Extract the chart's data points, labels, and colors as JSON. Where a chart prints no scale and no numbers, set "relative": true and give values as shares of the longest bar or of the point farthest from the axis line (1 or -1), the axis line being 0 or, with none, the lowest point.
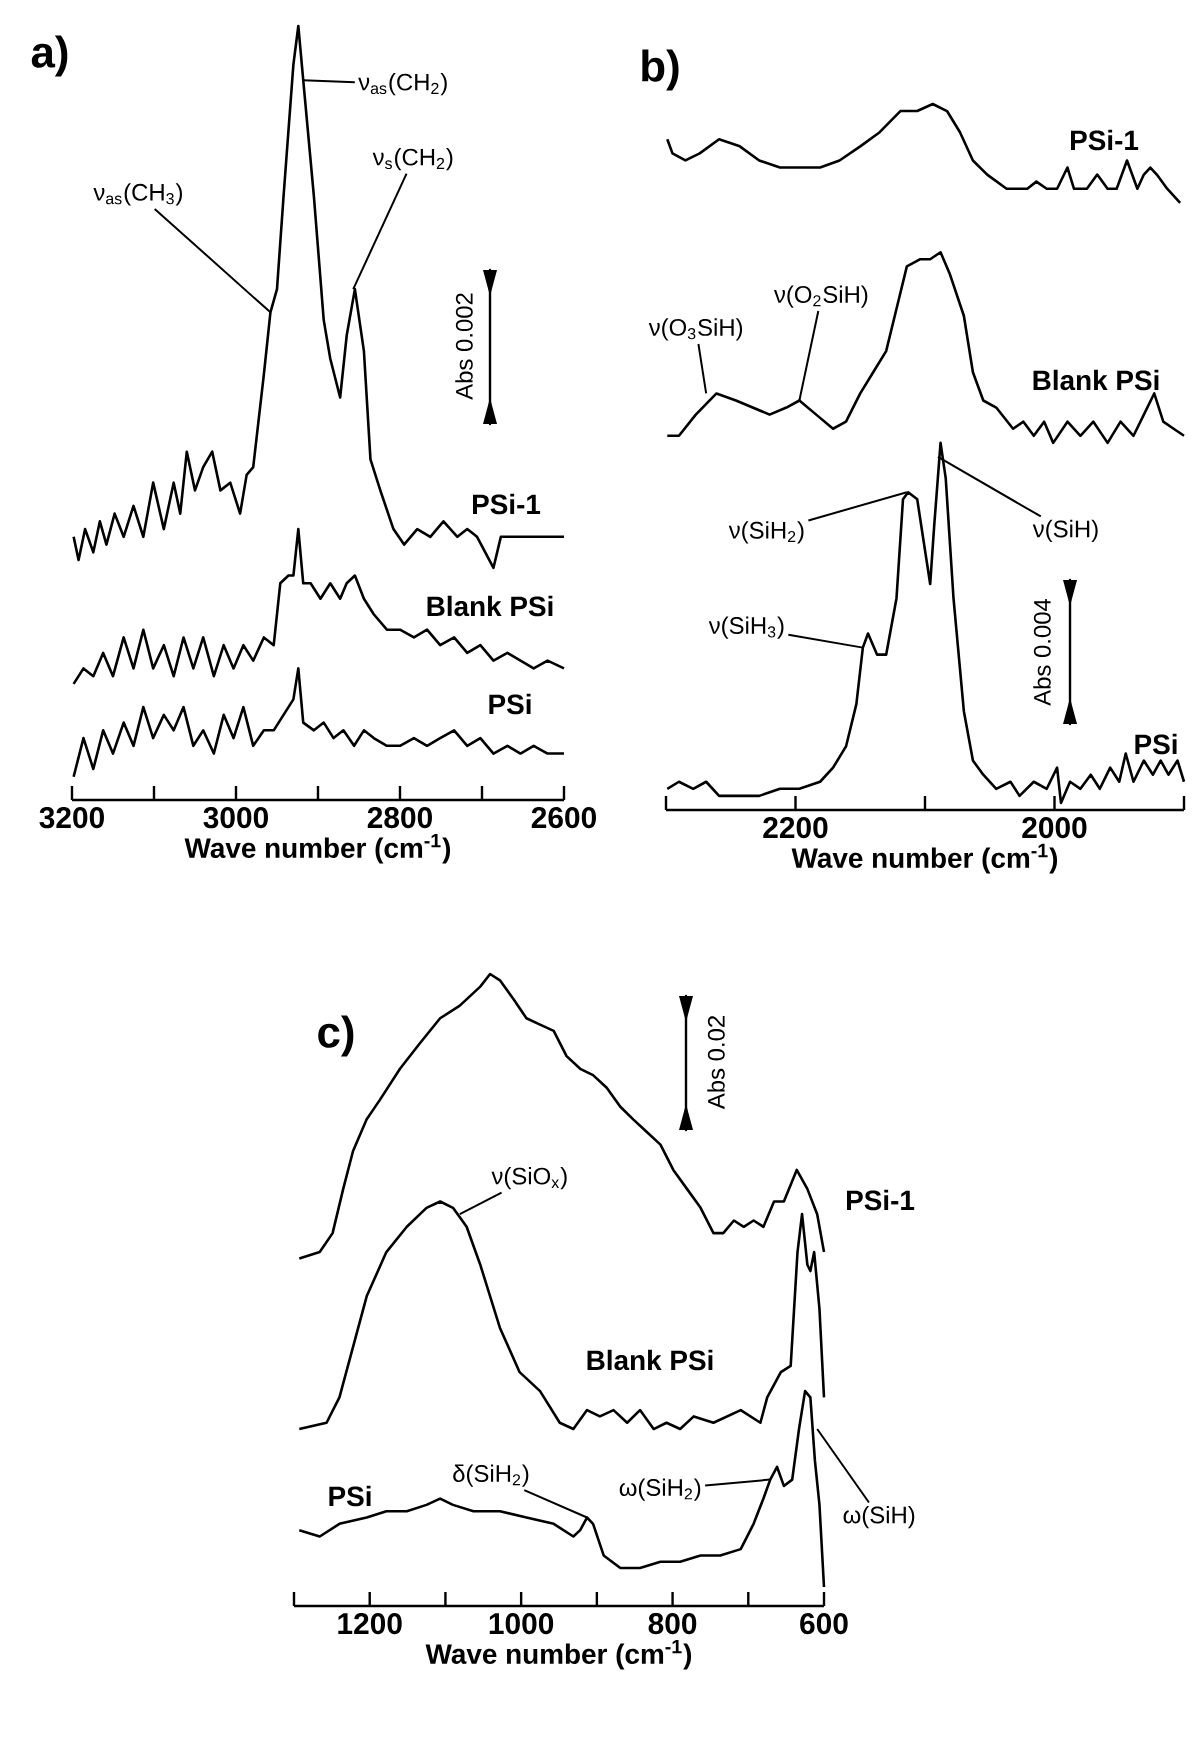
{
  "chart_data": [
    {
      "type": "line",
      "title": "a)",
      "xlabel": "Wave number (cm$^{-1}$)",
      "relative": true,
      "xlim": [
        3200,
        2600
      ],
      "xticks": [
        3200,
        {
          "value": 3100,
          "label": null
        },
        3000,
        {
          "value": 2900,
          "label": null
        },
        2800,
        {
          "value": 2700,
          "label": null
        },
        2600
      ],
      "series": [
        {
          "name": "PSi-1",
          "color": "#000000",
          "x": [
            3198,
            3192,
            3184,
            3174,
            3166,
            3158,
            3148,
            3137,
            3125,
            3113,
            3101,
            3088,
            3076,
            3068,
            3060,
            3050,
            3040,
            3029,
            3019,
            3007,
            2995,
            2987,
            2979,
            2966,
            2958,
            2950,
            2942,
            2930,
            2924,
            2918,
            2905,
            2893,
            2885,
            2873,
            2865,
            2855,
            2844,
            2836,
            2824,
            2808,
            2795,
            2779,
            2763,
            2747,
            2730,
            2718,
            2706,
            2686,
            2677,
            2661,
            2645,
            2629,
            2616,
            2600
          ],
          "values": [
            0.34,
            0.31,
            0.35,
            0.32,
            0.36,
            0.33,
            0.37,
            0.34,
            0.38,
            0.34,
            0.41,
            0.35,
            0.41,
            0.37,
            0.45,
            0.4,
            0.43,
            0.45,
            0.4,
            0.41,
            0.37,
            0.42,
            0.43,
            0.55,
            0.63,
            0.66,
            0.78,
            0.95,
            1.0,
            0.93,
            0.78,
            0.62,
            0.57,
            0.52,
            0.6,
            0.66,
            0.58,
            0.44,
            0.4,
            0.35,
            0.33,
            0.35,
            0.34,
            0.36,
            0.34,
            0.35,
            0.34,
            0.3,
            0.34,
            0.34,
            0.34,
            0.34,
            0.34,
            0.34
          ]
        },
        {
          "name": "Blank PSi",
          "color": "#000000",
          "x": [
            3198,
            3186,
            3174,
            3162,
            3150,
            3137,
            3125,
            3113,
            3101,
            3088,
            3076,
            3064,
            3052,
            3040,
            3027,
            3015,
            3003,
            2991,
            2979,
            2966,
            2954,
            2946,
            2936,
            2930,
            2924,
            2918,
            2909,
            2897,
            2885,
            2873,
            2865,
            2855,
            2844,
            2832,
            2816,
            2800,
            2783,
            2767,
            2751,
            2734,
            2718,
            2702,
            2686,
            2669,
            2653,
            2637,
            2620,
            2600
          ],
          "values": [
            0.15,
            0.17,
            0.16,
            0.19,
            0.16,
            0.21,
            0.17,
            0.22,
            0.17,
            0.2,
            0.16,
            0.21,
            0.17,
            0.21,
            0.16,
            0.2,
            0.17,
            0.2,
            0.18,
            0.21,
            0.2,
            0.28,
            0.29,
            0.29,
            0.35,
            0.28,
            0.28,
            0.26,
            0.28,
            0.26,
            0.28,
            0.29,
            0.26,
            0.24,
            0.22,
            0.22,
            0.21,
            0.22,
            0.2,
            0.21,
            0.19,
            0.2,
            0.18,
            0.19,
            0.18,
            0.17,
            0.18,
            0.17
          ]
        },
        {
          "name": "PSi",
          "color": "#000000",
          "x": [
            3198,
            3186,
            3174,
            3162,
            3150,
            3137,
            3125,
            3113,
            3101,
            3088,
            3076,
            3064,
            3052,
            3040,
            3027,
            3015,
            3003,
            2991,
            2979,
            2966,
            2954,
            2942,
            2930,
            2924,
            2918,
            2905,
            2893,
            2881,
            2869,
            2856,
            2844,
            2832,
            2816,
            2800,
            2783,
            2767,
            2751,
            2734,
            2718,
            2702,
            2686,
            2669,
            2653,
            2637,
            2620,
            2600
          ],
          "values": [
            0.03,
            0.08,
            0.04,
            0.09,
            0.06,
            0.1,
            0.07,
            0.12,
            0.08,
            0.11,
            0.09,
            0.12,
            0.07,
            0.09,
            0.06,
            0.11,
            0.08,
            0.12,
            0.07,
            0.09,
            0.09,
            0.11,
            0.13,
            0.17,
            0.1,
            0.09,
            0.1,
            0.08,
            0.09,
            0.07,
            0.09,
            0.08,
            0.07,
            0.07,
            0.08,
            0.07,
            0.08,
            0.09,
            0.07,
            0.08,
            0.06,
            0.07,
            0.06,
            0.07,
            0.06,
            0.06
          ]
        }
      ],
      "annotations": [
        {
          "text": "ν$_{as}$(CH$_{3}$)",
          "x": 2958,
          "y": 0.63
        },
        {
          "text": "ν$_{as}$(CH$_{2}$)",
          "x": 2918,
          "y": 0.93
        },
        {
          "text": "ν$_{s}$(CH$_{2}$)",
          "x": 2857,
          "y": 0.66
        },
        "Abs 0.002"
      ]
    },
    {
      "type": "line",
      "title": "b)",
      "xlabel": "Wave number (cm$^{-1}$)",
      "relative": true,
      "xlim": [
        2300,
        1900
      ],
      "xticks": [
        {
          "value": 2300,
          "label": null
        },
        2200,
        {
          "value": 2100,
          "label": null
        },
        2000,
        {
          "value": 1900,
          "label": null
        }
      ],
      "series": [
        {
          "name": "PSi-1",
          "color": "#000000",
          "x": [
            2299,
            2295,
            2285,
            2274,
            2259,
            2243,
            2228,
            2212,
            2197,
            2181,
            2166,
            2150,
            2135,
            2119,
            2106,
            2094,
            2083,
            2073,
            2063,
            2052,
            2037,
            2021,
            2014,
            2006,
            1998,
            1990,
            1985,
            1975,
            1967,
            1959,
            1952,
            1944,
            1936,
            1931,
            1926,
            1921,
            1913,
            1903
          ],
          "values": [
            0.95,
            0.93,
            0.92,
            0.93,
            0.95,
            0.94,
            0.92,
            0.91,
            0.91,
            0.91,
            0.92,
            0.94,
            0.96,
            0.99,
            0.99,
            1.0,
            0.99,
            0.96,
            0.92,
            0.9,
            0.88,
            0.88,
            0.89,
            0.88,
            0.88,
            0.91,
            0.88,
            0.88,
            0.9,
            0.88,
            0.88,
            0.92,
            0.88,
            0.9,
            0.91,
            0.9,
            0.88,
            0.86
          ]
        },
        {
          "name": "Blank PSi",
          "color": "#000000",
          "x": [
            2299,
            2290,
            2277,
            2261,
            2246,
            2233,
            2220,
            2207,
            2197,
            2184,
            2171,
            2161,
            2150,
            2140,
            2130,
            2122,
            2114,
            2104,
            2096,
            2088,
            2081,
            2070,
            2063,
            2055,
            2045,
            2032,
            2024,
            2016,
            2008,
            2001,
            1990,
            1980,
            1970,
            1959,
            1949,
            1939,
            1931,
            1923,
            1916,
            1908,
            1900
          ],
          "values": [
            0.53,
            0.53,
            0.56,
            0.59,
            0.58,
            0.57,
            0.56,
            0.57,
            0.58,
            0.56,
            0.54,
            0.55,
            0.59,
            0.62,
            0.65,
            0.71,
            0.77,
            0.78,
            0.78,
            0.79,
            0.76,
            0.7,
            0.62,
            0.58,
            0.57,
            0.54,
            0.55,
            0.53,
            0.55,
            0.52,
            0.55,
            0.53,
            0.55,
            0.52,
            0.55,
            0.53,
            0.56,
            0.59,
            0.55,
            0.54,
            0.53
          ]
        },
        {
          "name": "PSi",
          "color": "#000000",
          "x": [
            2299,
            2290,
            2279,
            2269,
            2259,
            2243,
            2228,
            2212,
            2197,
            2181,
            2171,
            2161,
            2153,
            2148,
            2144,
            2137,
            2130,
            2122,
            2117,
            2113,
            2106,
            2101,
            2096,
            2093,
            2088,
            2084,
            2078,
            2070,
            2063,
            2055,
            2045,
            2034,
            2027,
            2016,
            2006,
            1998,
            1995,
            1988,
            1980,
            1972,
            1965,
            1957,
            1950,
            1945,
            1939,
            1931,
            1924,
            1918,
            1912,
            1905,
            1900
          ],
          "values": [
            0.03,
            0.04,
            0.03,
            0.04,
            0.02,
            0.02,
            0.02,
            0.03,
            0.03,
            0.04,
            0.06,
            0.09,
            0.15,
            0.23,
            0.25,
            0.22,
            0.22,
            0.3,
            0.44,
            0.45,
            0.44,
            0.38,
            0.32,
            0.4,
            0.52,
            0.47,
            0.3,
            0.14,
            0.07,
            0.05,
            0.03,
            0.04,
            0.02,
            0.04,
            0.03,
            0.06,
            0.01,
            0.04,
            0.03,
            0.05,
            0.03,
            0.06,
            0.04,
            0.08,
            0.04,
            0.07,
            0.05,
            0.07,
            0.05,
            0.07,
            0.04
          ]
        }
      ],
      "annotations": [
        {
          "text": "ν(O$_{3}$SiH)",
          "x": 2269,
          "y": 0.59
        },
        {
          "text": "ν(O$_{2}$SiH)",
          "x": 2197,
          "y": 0.58
        },
        {
          "text": "ν(SiH$_{2}$)",
          "x": 2114,
          "y": 0.45
        },
        {
          "text": "ν(SiH)",
          "x": 2090,
          "y": 0.5
        },
        {
          "text": "ν(SiH$_{3}$)",
          "x": 2148,
          "y": 0.23
        },
        "Abs 0.004"
      ]
    },
    {
      "type": "line",
      "title": "c)",
      "xlabel": "Wave number (cm$^{-1}$)",
      "relative": true,
      "xlim": [
        1300,
        600
      ],
      "xticks": [
        {
          "value": 1300,
          "label": null
        },
        1200,
        {
          "value": 1100,
          "label": null
        },
        1000,
        {
          "value": 900,
          "label": null
        },
        800,
        {
          "value": 700,
          "label": null
        },
        600
      ],
      "series": [
        {
          "name": "PSi-1",
          "color": "#000000",
          "x": [
            1293,
            1266,
            1249,
            1235,
            1222,
            1204,
            1187,
            1160,
            1134,
            1107,
            1081,
            1054,
            1041,
            1028,
            1010,
            993,
            975,
            957,
            940,
            922,
            905,
            887,
            869,
            852,
            834,
            816,
            799,
            781,
            763,
            746,
            733,
            719,
            706,
            693,
            680,
            666,
            653,
            636,
            622,
            609,
            600
          ],
          "values": [
            0.55,
            0.56,
            0.59,
            0.66,
            0.72,
            0.77,
            0.8,
            0.85,
            0.89,
            0.93,
            0.95,
            0.98,
            1.0,
            0.99,
            0.96,
            0.93,
            0.92,
            0.91,
            0.87,
            0.85,
            0.84,
            0.82,
            0.79,
            0.77,
            0.75,
            0.73,
            0.69,
            0.66,
            0.63,
            0.59,
            0.59,
            0.61,
            0.6,
            0.61,
            0.6,
            0.64,
            0.64,
            0.69,
            0.66,
            0.62,
            0.56
          ]
        },
        {
          "name": "Blank PSi",
          "color": "#000000",
          "x": [
            1293,
            1257,
            1240,
            1222,
            1204,
            1178,
            1151,
            1125,
            1107,
            1090,
            1072,
            1054,
            1028,
            1002,
            975,
            949,
            931,
            913,
            896,
            878,
            860,
            843,
            825,
            808,
            790,
            772,
            746,
            710,
            684,
            675,
            657,
            644,
            635,
            629,
            622,
            618,
            613,
            606,
            600
          ],
          "values": [
            0.28,
            0.29,
            0.33,
            0.41,
            0.49,
            0.56,
            0.6,
            0.63,
            0.64,
            0.63,
            0.6,
            0.54,
            0.44,
            0.37,
            0.34,
            0.29,
            0.28,
            0.31,
            0.3,
            0.31,
            0.29,
            0.31,
            0.28,
            0.29,
            0.28,
            0.3,
            0.29,
            0.31,
            0.29,
            0.33,
            0.37,
            0.38,
            0.56,
            0.62,
            0.54,
            0.53,
            0.56,
            0.47,
            0.33
          ]
        },
        {
          "name": "PSi",
          "color": "#000000",
          "x": [
            1293,
            1266,
            1240,
            1204,
            1178,
            1151,
            1125,
            1107,
            1090,
            1063,
            1028,
            993,
            957,
            931,
            922,
            913,
            905,
            891,
            869,
            843,
            816,
            790,
            763,
            737,
            710,
            693,
            680,
            671,
            662,
            653,
            642,
            633,
            625,
            618,
            612,
            606,
            600
          ],
          "values": [
            0.12,
            0.11,
            0.13,
            0.14,
            0.15,
            0.15,
            0.16,
            0.17,
            0.16,
            0.15,
            0.15,
            0.14,
            0.13,
            0.11,
            0.12,
            0.14,
            0.13,
            0.08,
            0.06,
            0.06,
            0.07,
            0.07,
            0.08,
            0.08,
            0.09,
            0.13,
            0.17,
            0.2,
            0.22,
            0.19,
            0.2,
            0.28,
            0.34,
            0.33,
            0.23,
            0.16,
            0.03
          ]
        }
      ],
      "annotations": [
        {
          "text": "ν(SiO$_{x}$)",
          "x": 1081,
          "y": 0.62
        },
        {
          "text": "δ(SiH$_{2}$)",
          "x": 913,
          "y": 0.14
        },
        {
          "text": "ω(SiH$_{2}$)",
          "x": 671,
          "y": 0.2
        },
        {
          "text": "ω(SiH)",
          "x": 609,
          "y": 0.28
        },
        "Abs 0.02"
      ]
    }
  ]
}
